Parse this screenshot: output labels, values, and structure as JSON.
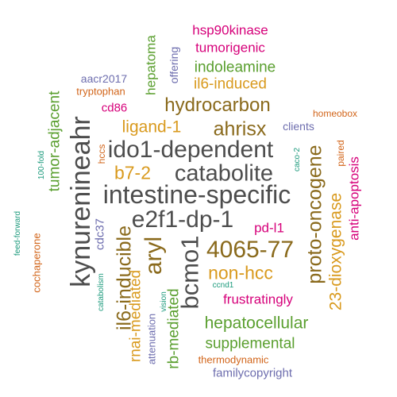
{
  "colors": {
    "gray": "#4d4d4d",
    "brown": "#8a6a1c",
    "gold": "#d99a1e",
    "green": "#5a9f2f",
    "magenta": "#d6007a",
    "purple": "#6d6dae",
    "orange": "#d2651a",
    "teal": "#1c9a7c"
  },
  "words": [
    {
      "text": "intestine-specific",
      "color": "gray"
    },
    {
      "text": "kynurenineahr",
      "color": "gray"
    },
    {
      "text": "ido1-dependent",
      "color": "gray"
    },
    {
      "text": "catabolite",
      "color": "gray"
    },
    {
      "text": "e2f1-dp-1",
      "color": "gray"
    },
    {
      "text": "4065-77",
      "color": "brown"
    },
    {
      "text": "bcmo1",
      "color": "gray"
    },
    {
      "text": "aryl",
      "color": "brown"
    },
    {
      "text": "proto-oncogene",
      "color": "brown"
    },
    {
      "text": "il6-inducible",
      "color": "brown"
    },
    {
      "text": "hydrocarbon",
      "color": "brown"
    },
    {
      "text": "ahrisx",
      "color": "brown"
    },
    {
      "text": "non-hcc",
      "color": "gold"
    },
    {
      "text": "ligand-1",
      "color": "gold"
    },
    {
      "text": "b7-2",
      "color": "gold"
    },
    {
      "text": "23-dioxygenase",
      "color": "gold"
    },
    {
      "text": "hepatocellular",
      "color": "green"
    },
    {
      "text": "supplemental",
      "color": "green"
    },
    {
      "text": "rnai-mediated",
      "color": "gold"
    },
    {
      "text": "rb-mediated",
      "color": "green"
    },
    {
      "text": "tumor-adjacent",
      "color": "green"
    },
    {
      "text": "il6-induced",
      "color": "gold"
    },
    {
      "text": "indoleamine",
      "color": "green"
    },
    {
      "text": "tumorigenic",
      "color": "magenta"
    },
    {
      "text": "hsp90kinase",
      "color": "magenta"
    },
    {
      "text": "hepatoma",
      "color": "green"
    },
    {
      "text": "anti-apoptosis",
      "color": "magenta"
    },
    {
      "text": "pd-l1",
      "color": "magenta"
    },
    {
      "text": "frustratingly",
      "color": "magenta"
    },
    {
      "text": "familycopyright",
      "color": "purple"
    },
    {
      "text": "thermodynamic",
      "color": "orange"
    },
    {
      "text": "attenuation",
      "color": "purple"
    },
    {
      "text": "cdc37",
      "color": "purple"
    },
    {
      "text": "cd86",
      "color": "magenta"
    },
    {
      "text": "clients",
      "color": "purple"
    },
    {
      "text": "aacr2017",
      "color": "purple"
    },
    {
      "text": "offering",
      "color": "purple"
    },
    {
      "text": "tryptophan",
      "color": "orange"
    },
    {
      "text": "cochaperone",
      "color": "orange"
    },
    {
      "text": "homeobox",
      "color": "orange"
    },
    {
      "text": "paired",
      "color": "orange"
    },
    {
      "text": "hccs",
      "color": "orange"
    },
    {
      "text": "caco-2",
      "color": "teal"
    },
    {
      "text": "100-fold",
      "color": "teal"
    },
    {
      "text": "feed-forward",
      "color": "teal"
    },
    {
      "text": "catabolism",
      "color": "teal"
    },
    {
      "text": "vision",
      "color": "teal"
    },
    {
      "text": "ccnd1",
      "color": "teal"
    }
  ]
}
